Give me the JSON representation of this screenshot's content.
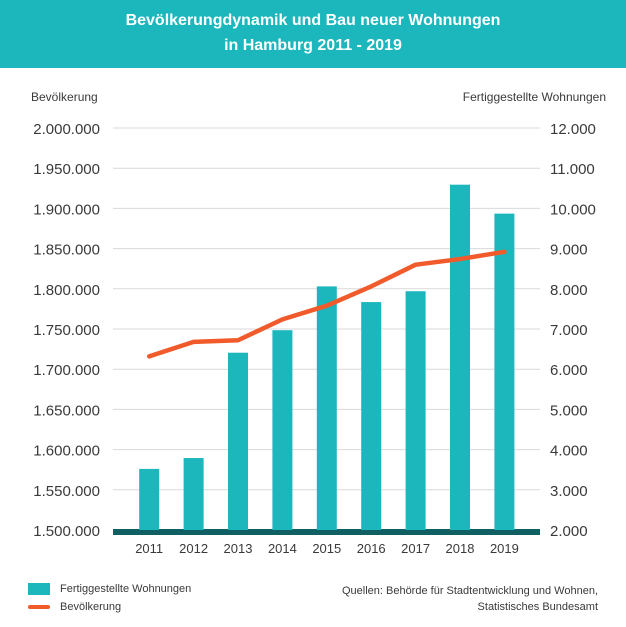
{
  "header": {
    "title_line1": "Bevölkerungdynamik und Bau neuer Wohnungen",
    "title_line2": "in Hamburg 2011 - 2019"
  },
  "axes": {
    "left_title": "Bevölkerung",
    "right_title": "Fertiggestellte Wohnungen"
  },
  "legend": {
    "bar_label": "Fertiggestellte Wohnungen",
    "line_label": "Bevölkerung"
  },
  "source": {
    "line1": "Quellen: Behörde für Stadtentwicklung und Wohnen,",
    "line2": "Statistisches Bundesamt"
  },
  "colors": {
    "header": "#1bb7bd",
    "bar": "#1bb7bd",
    "line": "#f15a2b",
    "baseline": "#0f5f63",
    "grid": "#d9d9d9"
  },
  "chart_data": {
    "type": "bar",
    "categories": [
      "2011",
      "2012",
      "2013",
      "2014",
      "2015",
      "2016",
      "2017",
      "2018",
      "2019"
    ],
    "series": [
      {
        "name": "Fertiggestellte Wohnungen",
        "type": "bar",
        "axis": "right",
        "values": [
          3520,
          3790,
          6410,
          6970,
          8060,
          7670,
          7940,
          10590,
          9870
        ]
      },
      {
        "name": "Bevölkerung",
        "type": "line",
        "axis": "left",
        "values": [
          1716000,
          1734000,
          1736000,
          1762000,
          1779000,
          1803000,
          1830000,
          1837000,
          1846000
        ]
      }
    ],
    "y_left": {
      "label": "Bevölkerung",
      "ylim": [
        1500000,
        2000000
      ],
      "ticks": [
        "1.500.000",
        "1.550.000",
        "1.600.000",
        "1.650.000",
        "1.700.000",
        "1.750.000",
        "1.800.000",
        "1.850.000",
        "1.900.000",
        "1.950.000",
        "2.000.000"
      ]
    },
    "y_right": {
      "label": "Fertiggestellte Wohnungen",
      "ylim": [
        2000,
        12000
      ],
      "ticks": [
        "2.000",
        "3.000",
        "4.000",
        "5.000",
        "6.000",
        "7.000",
        "8.000",
        "9.000",
        "10.000",
        "11.000",
        "12.000"
      ]
    },
    "grid": true,
    "legend_position": "bottom-left"
  }
}
